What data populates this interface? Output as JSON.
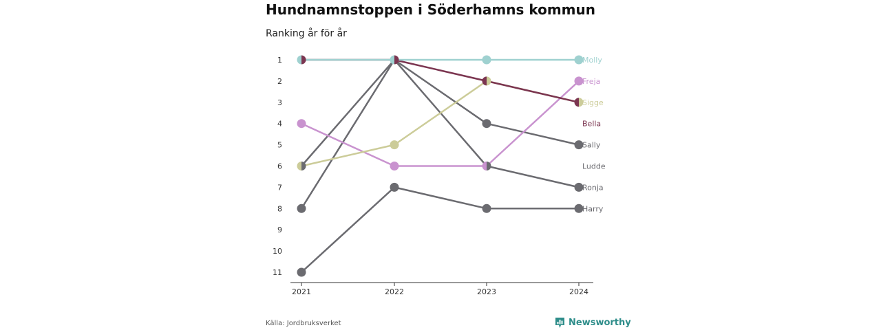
{
  "header": {
    "title": "Hundnamnstoppen i Söderhamns kommun",
    "subtitle": "Ranking år för år"
  },
  "footer": {
    "source": "Källa: Jordbruksverket",
    "brand": "Newsworthy",
    "brand_icon": "bar-chart-badge-icon"
  },
  "colors": {
    "Molly": "#9fd1d0",
    "Freja": "#c993cf",
    "Sigge": "#cccc99",
    "Bella": "#7b3550",
    "Sally": "#6b6b70",
    "Ludde": "#6b6b70",
    "Ronja": "#6b6b70",
    "Harry": "#6b6b70",
    "axis": "#333333",
    "brand": "#2e8d8a"
  },
  "chart_data": {
    "type": "line",
    "title": "Hundnamnstoppen i Söderhamns kommun",
    "subtitle": "Ranking år för år",
    "x": [
      "2021",
      "2022",
      "2023",
      "2024"
    ],
    "yticks": [
      1,
      2,
      3,
      4,
      5,
      6,
      7,
      8,
      9,
      10,
      11
    ],
    "ylim": [
      1,
      11
    ],
    "y_reversed": true,
    "grid": false,
    "series": [
      {
        "name": "Harry",
        "values": [
          11,
          7,
          8,
          8
        ]
      },
      {
        "name": "Ronja",
        "values": [
          8,
          1,
          6,
          7
        ]
      },
      {
        "name": "Ludde",
        "values": [
          null,
          1,
          null,
          null
        ]
      },
      {
        "name": "Sally",
        "values": [
          6,
          1,
          4,
          5
        ]
      },
      {
        "name": "Freja",
        "values": [
          4,
          6,
          6,
          2
        ]
      },
      {
        "name": "Sigge",
        "values": [
          6,
          5,
          2,
          3
        ]
      },
      {
        "name": "Bella",
        "values": [
          1,
          1,
          2,
          3
        ]
      },
      {
        "name": "Molly",
        "values": [
          1,
          1,
          1,
          1
        ]
      }
    ],
    "end_labels": [
      "Molly",
      "Freja",
      "Sigge",
      "Bella",
      "Sally",
      "Ludde",
      "Ronja",
      "Harry"
    ]
  }
}
